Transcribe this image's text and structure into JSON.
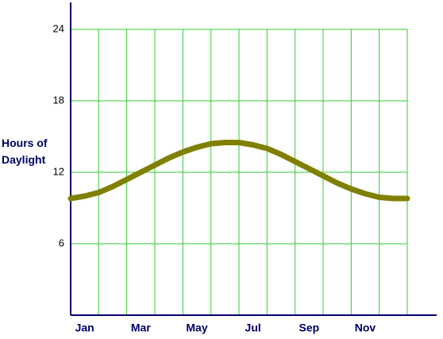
{
  "chart_data": {
    "type": "line",
    "y_label": "Hours of Daylight",
    "x": [
      0,
      0.5,
      1,
      1.5,
      2,
      2.5,
      3,
      3.5,
      4,
      4.5,
      5,
      5.5,
      6,
      6.5,
      7,
      7.5,
      8,
      8.5,
      9,
      9.5,
      10,
      10.5,
      11,
      11.5,
      12
    ],
    "series": [
      {
        "color": "#808000",
        "values": [
          9.8,
          10.0,
          10.3,
          10.8,
          11.4,
          12.0,
          12.6,
          13.2,
          13.7,
          14.1,
          14.4,
          14.5,
          14.5,
          14.3,
          14.0,
          13.5,
          12.9,
          12.3,
          11.7,
          11.1,
          10.6,
          10.2,
          9.9,
          9.8,
          9.8
        ]
      }
    ],
    "xlim": [
      0,
      12
    ],
    "xticks": [
      {
        "value": 0.5,
        "label": "Jan"
      },
      {
        "value": 2.5,
        "label": "Mar"
      },
      {
        "value": 4.5,
        "label": "May"
      },
      {
        "value": 6.5,
        "label": "Jul"
      },
      {
        "value": 8.5,
        "label": "Sep"
      },
      {
        "value": 10.5,
        "label": "Nov"
      }
    ],
    "ylim": [
      0,
      26
    ],
    "yticks": [
      6,
      12,
      18,
      24
    ],
    "grid": true,
    "grid_color": "#33cc33",
    "axis_color": "#000066"
  }
}
